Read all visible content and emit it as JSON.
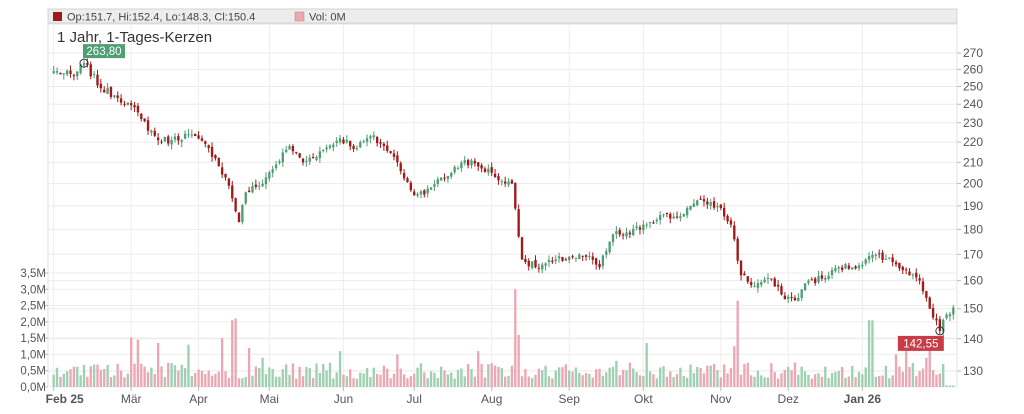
{
  "header": {
    "ohlc_text": "Op:151.7, Hi:152.4, Lo:148.3, Cl:150.4",
    "volume_text": "Vol: 0M"
  },
  "chart_data": {
    "type": "candlestick",
    "title": "1 Jahr, 1-Tages-Kerzen",
    "price_axis": {
      "scale": "log",
      "ticks": [
        130,
        140,
        150,
        160,
        170,
        180,
        190,
        200,
        210,
        220,
        230,
        240,
        250,
        260,
        270
      ],
      "range": [
        125,
        285
      ]
    },
    "volume_axis": {
      "ticks": [
        "0,0M",
        "0,5M",
        "1,0M",
        "1,5M",
        "2,0M",
        "2,5M",
        "3,0M",
        "3,5M"
      ],
      "range": [
        0,
        3.5
      ]
    },
    "x_labels": [
      "Feb 25",
      "Mär",
      "Apr",
      "Mai",
      "Jun",
      "Jul",
      "Aug",
      "Sep",
      "Okt",
      "Nov",
      "Dez",
      "Jan 26"
    ],
    "max_label": "263,80",
    "min_label": "142,55",
    "colors": {
      "up": "#4f9e74",
      "down": "#a01a1a",
      "vol_up": "#9fd0b2",
      "vol_down": "#eba8b3",
      "max_badge": "#4f9e74",
      "min_badge": "#c73c47"
    },
    "legend": "top-left",
    "grid": true,
    "price_path": [
      [
        0,
        259
      ],
      [
        6,
        256
      ],
      [
        9,
        263.8
      ],
      [
        14,
        249
      ],
      [
        18,
        245
      ],
      [
        22,
        241
      ],
      [
        26,
        232
      ],
      [
        31,
        221
      ],
      [
        35,
        221
      ],
      [
        40,
        224
      ],
      [
        46,
        217
      ],
      [
        48,
        212
      ],
      [
        52,
        199
      ],
      [
        55,
        183
      ],
      [
        57,
        196
      ],
      [
        61,
        199
      ],
      [
        66,
        209
      ],
      [
        70,
        218
      ],
      [
        74,
        210
      ],
      [
        80,
        216
      ],
      [
        85,
        222
      ],
      [
        90,
        217
      ],
      [
        94,
        223
      ],
      [
        98,
        218
      ],
      [
        102,
        210
      ],
      [
        106,
        197
      ],
      [
        110,
        195
      ],
      [
        114,
        202
      ],
      [
        118,
        205
      ],
      [
        122,
        211
      ],
      [
        126,
        208
      ],
      [
        130,
        205
      ],
      [
        134,
        200
      ],
      [
        136,
        200
      ],
      [
        139,
        168
      ],
      [
        143,
        165
      ],
      [
        148,
        167
      ],
      [
        153,
        169
      ],
      [
        158,
        169
      ],
      [
        162,
        165
      ],
      [
        166,
        178
      ],
      [
        171,
        178
      ],
      [
        175,
        182
      ],
      [
        180,
        186
      ],
      [
        185,
        185
      ],
      [
        189,
        190
      ],
      [
        193,
        192
      ],
      [
        197,
        190
      ],
      [
        201,
        182
      ],
      [
        204,
        162
      ],
      [
        208,
        158
      ],
      [
        212,
        161
      ],
      [
        216,
        155
      ],
      [
        220,
        153
      ],
      [
        224,
        160
      ],
      [
        229,
        161
      ],
      [
        233,
        165
      ],
      [
        237,
        165
      ],
      [
        241,
        168
      ],
      [
        245,
        170
      ],
      [
        249,
        167
      ],
      [
        253,
        164
      ],
      [
        257,
        160
      ],
      [
        260,
        150
      ],
      [
        262,
        146
      ],
      [
        263,
        142.55
      ],
      [
        265,
        148
      ],
      [
        267,
        150.4
      ]
    ],
    "volume_spikes": [
      [
        23,
        1.52
      ],
      [
        25,
        1.45
      ],
      [
        31,
        1.35
      ],
      [
        40,
        1.3
      ],
      [
        50,
        1.5
      ],
      [
        53,
        2.05
      ],
      [
        54,
        2.1
      ],
      [
        58,
        1.2
      ],
      [
        62,
        0.9
      ],
      [
        85,
        1.1
      ],
      [
        102,
        1.0
      ],
      [
        126,
        1.1
      ],
      [
        137,
        3.0
      ],
      [
        138,
        1.6
      ],
      [
        167,
        0.8
      ],
      [
        176,
        1.35
      ],
      [
        202,
        1.25
      ],
      [
        203,
        2.65
      ],
      [
        242,
        2.05
      ],
      [
        243,
        2.05
      ],
      [
        250,
        1.0
      ],
      [
        253,
        1.35
      ],
      [
        259,
        0.9
      ],
      [
        260,
        1.35
      ]
    ]
  }
}
